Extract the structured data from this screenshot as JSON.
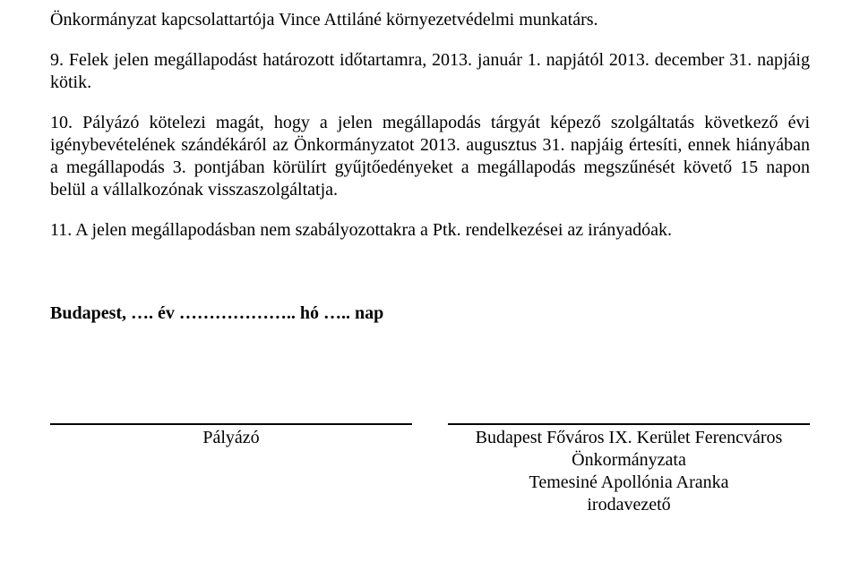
{
  "paragraphs": {
    "p1": "Önkormányzat kapcsolattartója Vince Attiláné környezetvédelmi munkatárs.",
    "p2": "9. Felek jelen megállapodást határozott időtartamra, 2013. január 1. napjától 2013. december 31. napjáig kötik.",
    "p3": "10. Pályázó kötelezi magát, hogy a jelen megállapodás tárgyát képező szolgáltatás következő évi igénybevételének szándékáról az Önkormányzatot 2013. augusztus 31. napjáig értesíti, ennek hiányában a megállapodás 3. pontjában körülírt gyűjtőedényeket a megállapodás megszűnését követő 15 napon belül a vállalkozónak visszaszolgáltatja.",
    "p4": "11. A jelen megállapodásban nem szabályozottakra a Ptk. rendelkezései az irányadóak.",
    "date_line": "Budapest, …. év ……………….. hó ….. nap"
  },
  "signatures": {
    "left": {
      "line1": "Pályázó"
    },
    "right": {
      "line1": "Budapest Főváros IX. Kerület Ferencváros",
      "line2": "Önkormányzata",
      "line3": "Temesiné Apollónia Aranka",
      "line4": "irodavezető"
    }
  }
}
